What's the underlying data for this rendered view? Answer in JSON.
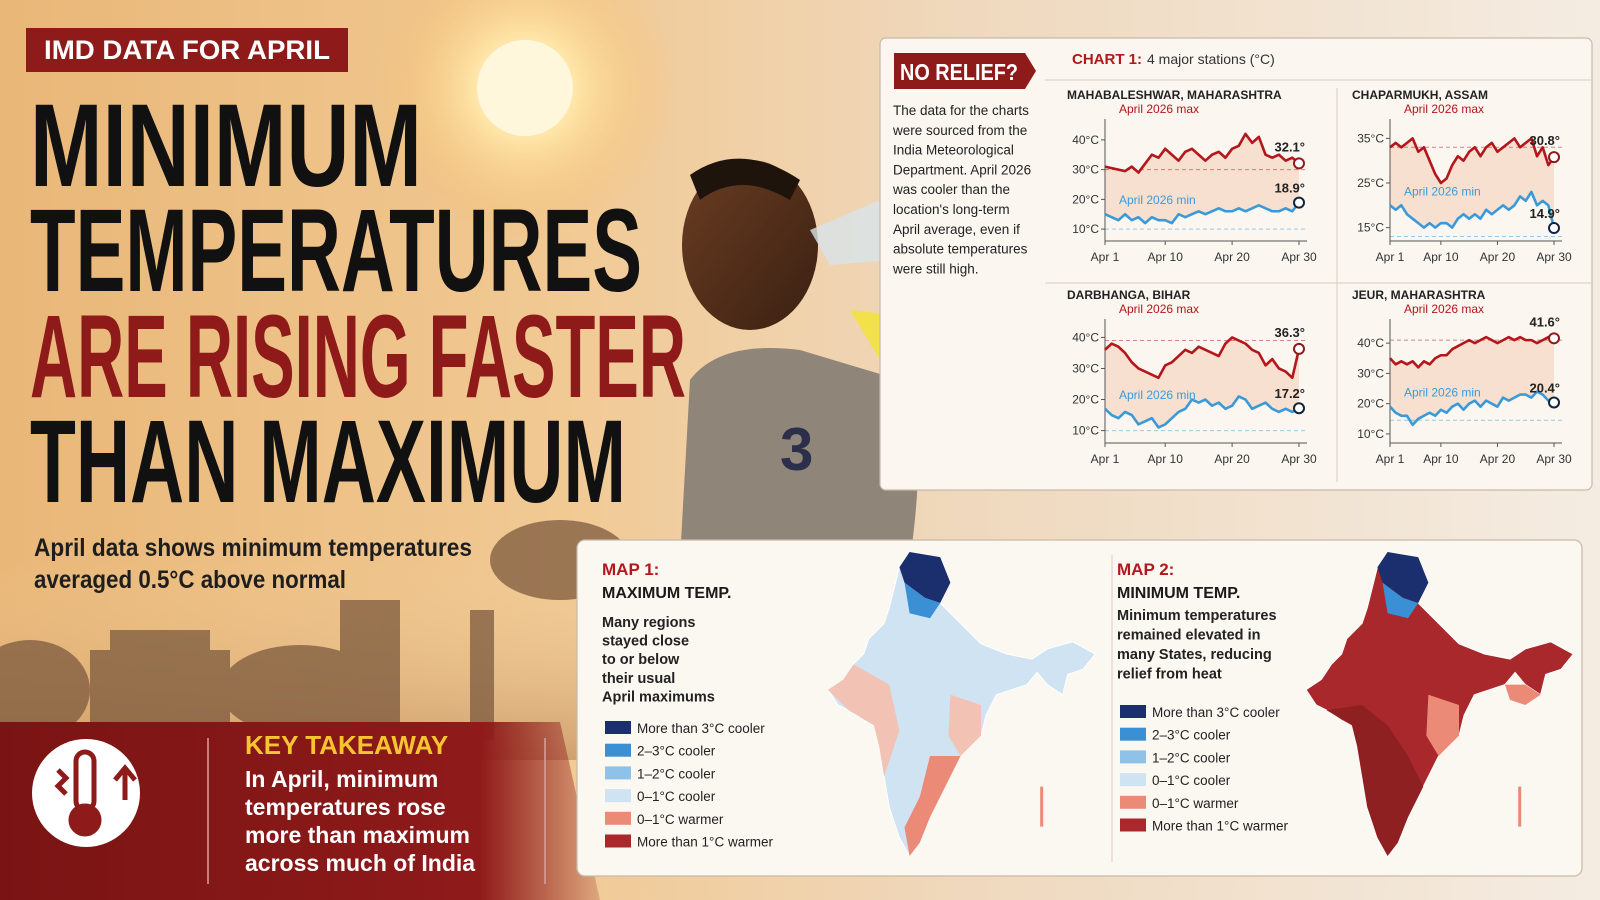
{
  "header": {
    "badge": "IMD DATA FOR APRIL",
    "title_lines": [
      "MINIMUM",
      "TEMPERATURES",
      "ARE RISING FASTER",
      "THAN MAXIMUM"
    ],
    "subtitle_lines": [
      "April data shows minimum temperatures",
      "averaged 0.5°C above normal"
    ]
  },
  "key_takeaway": {
    "heading": "KEY TAKEAWAY",
    "lines": [
      "In April, minimum",
      "temperatures rose",
      "more than maximum",
      "across much of India"
    ]
  },
  "sidebar": {
    "tag": "NO RELIEF?",
    "lines": [
      "The data for the charts",
      "were sourced from the",
      "India Meteorological",
      "Department. April 2026",
      "was cooler than the",
      "location's long-term",
      "April average, even if",
      "absolute temperatures",
      "were still high."
    ]
  },
  "chart_heading": {
    "label": "CHART 1:",
    "text": "4 major stations (°C)"
  },
  "chart_data": [
    {
      "type": "line",
      "title": "MAHABALESHWAR, MAHARASHTRA",
      "x": [
        1,
        2,
        3,
        4,
        5,
        6,
        7,
        8,
        9,
        10,
        11,
        12,
        13,
        14,
        15,
        16,
        17,
        18,
        19,
        20,
        21,
        22,
        23,
        24,
        25,
        26,
        27,
        28,
        29,
        30
      ],
      "xlim": [
        1,
        30
      ],
      "xticks": [
        {
          "value": 1,
          "label": "Apr 1"
        },
        {
          "value": 10,
          "label": "Apr 10"
        },
        {
          "value": 20,
          "label": "Apr 20"
        },
        {
          "value": 30,
          "label": "Apr 30"
        }
      ],
      "ylim": [
        6,
        45
      ],
      "yticks": [
        {
          "value": 10,
          "label": "10°C"
        },
        {
          "value": 20,
          "label": "20°C"
        },
        {
          "value": 30,
          "label": "30°C"
        },
        {
          "value": 40,
          "label": "40°C"
        }
      ],
      "reference_lines": [
        30,
        10
      ],
      "series": [
        {
          "name": "April 2026 max",
          "color": "#b3161b",
          "values": [
            31,
            30.5,
            30,
            29.5,
            31,
            29,
            32,
            35,
            34,
            37,
            35,
            33,
            36,
            37,
            35,
            33,
            35,
            36,
            34,
            37,
            38,
            42,
            39,
            41,
            35,
            34,
            35,
            33,
            34,
            32.1
          ],
          "value_labels": [
            null,
            null,
            null,
            null,
            null,
            null,
            null,
            null,
            null,
            null,
            null,
            null,
            null,
            null,
            null,
            null,
            null,
            null,
            null,
            null,
            null,
            null,
            null,
            null,
            null,
            null,
            null,
            null,
            null,
            "32.1°"
          ]
        },
        {
          "name": "April 2026 min",
          "color": "#3a9ad9",
          "values": [
            15,
            14,
            13,
            15,
            13,
            14,
            12,
            14,
            13,
            13,
            12,
            15,
            14,
            15,
            16,
            15,
            16,
            17,
            16,
            16,
            17,
            16,
            17,
            18,
            17,
            16,
            16,
            17,
            16,
            18.9
          ],
          "value_labels": [
            null,
            null,
            null,
            null,
            null,
            null,
            null,
            null,
            null,
            null,
            null,
            null,
            null,
            null,
            null,
            null,
            null,
            null,
            null,
            null,
            null,
            null,
            null,
            null,
            null,
            null,
            null,
            null,
            null,
            "18.9°"
          ]
        }
      ]
    },
    {
      "type": "line",
      "title": "CHAPARMUKH, ASSAM",
      "x": [
        1,
        2,
        3,
        4,
        5,
        6,
        7,
        8,
        9,
        10,
        11,
        12,
        13,
        14,
        15,
        16,
        17,
        18,
        19,
        20,
        21,
        22,
        23,
        24,
        25,
        26,
        27,
        28,
        29,
        30
      ],
      "xlim": [
        1,
        30
      ],
      "xticks": [
        {
          "value": 1,
          "label": "Apr 1"
        },
        {
          "value": 10,
          "label": "Apr 10"
        },
        {
          "value": 20,
          "label": "Apr 20"
        },
        {
          "value": 30,
          "label": "Apr 30"
        }
      ],
      "ylim": [
        12,
        38
      ],
      "yticks": [
        {
          "value": 15,
          "label": "15°C"
        },
        {
          "value": 25,
          "label": "25°C"
        },
        {
          "value": 35,
          "label": "35°C"
        }
      ],
      "reference_lines": [
        33,
        13
      ],
      "series": [
        {
          "name": "April 2026 max",
          "color": "#b3161b",
          "values": [
            33,
            34,
            33,
            34,
            35,
            32,
            33,
            30,
            27,
            25,
            26,
            29,
            31,
            30,
            32,
            33,
            31,
            33,
            34,
            32,
            33,
            34,
            35,
            33,
            34,
            35,
            31,
            33,
            29,
            30.8
          ],
          "value_labels": [
            null,
            null,
            null,
            null,
            null,
            null,
            null,
            null,
            null,
            null,
            null,
            null,
            null,
            null,
            null,
            null,
            null,
            null,
            null,
            null,
            null,
            null,
            null,
            null,
            null,
            null,
            null,
            null,
            null,
            "30.8°"
          ]
        },
        {
          "name": "April 2026 min",
          "color": "#3a9ad9",
          "values": [
            20,
            19,
            20,
            18,
            17,
            16,
            15,
            16,
            15,
            16,
            16,
            15,
            17,
            18,
            17,
            18,
            17,
            19,
            18,
            19,
            20,
            19,
            20,
            22,
            21,
            23,
            20,
            21,
            20,
            14.9
          ],
          "value_labels": [
            null,
            null,
            null,
            null,
            null,
            null,
            null,
            null,
            null,
            null,
            null,
            null,
            null,
            null,
            null,
            null,
            null,
            null,
            null,
            null,
            null,
            null,
            null,
            null,
            null,
            null,
            null,
            null,
            null,
            "14.9°"
          ]
        }
      ]
    },
    {
      "type": "line",
      "title": "DARBHANGA, BIHAR",
      "x": [
        1,
        2,
        3,
        4,
        5,
        6,
        7,
        8,
        9,
        10,
        11,
        12,
        13,
        14,
        15,
        16,
        17,
        18,
        19,
        20,
        21,
        22,
        23,
        24,
        25,
        26,
        27,
        28,
        29,
        30
      ],
      "xlim": [
        1,
        30
      ],
      "xticks": [
        {
          "value": 1,
          "label": "Apr 1"
        },
        {
          "value": 10,
          "label": "Apr 10"
        },
        {
          "value": 20,
          "label": "Apr 20"
        },
        {
          "value": 30,
          "label": "Apr 30"
        }
      ],
      "ylim": [
        6,
        44
      ],
      "yticks": [
        {
          "value": 10,
          "label": "10°C"
        },
        {
          "value": 20,
          "label": "20°C"
        },
        {
          "value": 30,
          "label": "30°C"
        },
        {
          "value": 40,
          "label": "40°C"
        }
      ],
      "reference_lines": [
        39,
        10
      ],
      "series": [
        {
          "name": "April 2026 max",
          "color": "#b3161b",
          "values": [
            36,
            38,
            37,
            35,
            32,
            30,
            29,
            28,
            27,
            31,
            32,
            34,
            36,
            35,
            37,
            36,
            35,
            34,
            38,
            40,
            39,
            38,
            36,
            35,
            31,
            33,
            30,
            29,
            27,
            36.3
          ],
          "value_labels": [
            null,
            null,
            null,
            null,
            null,
            null,
            null,
            null,
            null,
            null,
            null,
            null,
            null,
            null,
            null,
            null,
            null,
            null,
            null,
            null,
            null,
            null,
            null,
            null,
            null,
            null,
            null,
            null,
            null,
            "36.3°"
          ]
        },
        {
          "name": "April 2026 min",
          "color": "#3a9ad9",
          "values": [
            17,
            15,
            14,
            16,
            15,
            12,
            13,
            14,
            11,
            12,
            14,
            16,
            17,
            20,
            19,
            20,
            18,
            19,
            17,
            18,
            21,
            20,
            17,
            18,
            19,
            17,
            16,
            17,
            16,
            17.2
          ],
          "value_labels": [
            null,
            null,
            null,
            null,
            null,
            null,
            null,
            null,
            null,
            null,
            null,
            null,
            null,
            null,
            null,
            null,
            null,
            null,
            null,
            null,
            null,
            null,
            null,
            null,
            null,
            null,
            null,
            null,
            null,
            "17.2°"
          ]
        }
      ]
    },
    {
      "type": "line",
      "title": "JEUR, MAHARASHTRA",
      "x": [
        1,
        2,
        3,
        4,
        5,
        6,
        7,
        8,
        9,
        10,
        11,
        12,
        13,
        14,
        15,
        16,
        17,
        18,
        19,
        20,
        21,
        22,
        23,
        24,
        25,
        26,
        27,
        28,
        29,
        30
      ],
      "xlim": [
        1,
        30
      ],
      "xticks": [
        {
          "value": 1,
          "label": "Apr 1"
        },
        {
          "value": 10,
          "label": "Apr 10"
        },
        {
          "value": 20,
          "label": "Apr 20"
        },
        {
          "value": 30,
          "label": "Apr 30"
        }
      ],
      "ylim": [
        7,
        46
      ],
      "yticks": [
        {
          "value": 10,
          "label": "10°C"
        },
        {
          "value": 20,
          "label": "20°C"
        },
        {
          "value": 30,
          "label": "30°C"
        },
        {
          "value": 40,
          "label": "40°C"
        }
      ],
      "reference_lines": [
        41,
        14.5
      ],
      "series": [
        {
          "name": "April 2026 max",
          "color": "#b3161b",
          "values": [
            35,
            33,
            34,
            33,
            34,
            32,
            34,
            33,
            35,
            36,
            36,
            38,
            39,
            40,
            41,
            40,
            41,
            42,
            41,
            40,
            41,
            42,
            41,
            42,
            41,
            41,
            40,
            41,
            42,
            41.6
          ],
          "value_labels": [
            null,
            null,
            null,
            null,
            null,
            null,
            null,
            null,
            null,
            null,
            null,
            null,
            null,
            null,
            null,
            null,
            null,
            null,
            null,
            null,
            null,
            null,
            null,
            null,
            null,
            null,
            null,
            null,
            null,
            "41.6°"
          ]
        },
        {
          "name": "April 2026 min",
          "color": "#3a9ad9",
          "values": [
            19,
            17,
            16,
            16,
            13,
            15,
            16,
            17,
            16,
            18,
            17,
            19,
            20,
            18,
            20,
            21,
            19,
            21,
            20,
            19,
            22,
            21,
            22,
            23,
            23,
            22,
            24,
            23,
            21,
            20.4
          ],
          "value_labels": [
            null,
            null,
            null,
            null,
            null,
            null,
            null,
            null,
            null,
            null,
            null,
            null,
            null,
            null,
            null,
            null,
            null,
            null,
            null,
            null,
            null,
            null,
            null,
            null,
            null,
            null,
            null,
            null,
            null,
            "20.4°"
          ]
        }
      ]
    }
  ],
  "maps": [
    {
      "label": "MAP 1:",
      "title": "MAXIMUM TEMP.",
      "description_lines": [
        "Many regions",
        "stayed close",
        "to or below",
        "their usual",
        "April maximums"
      ],
      "legend": [
        {
          "label": "More than 3°C cooler",
          "color": "#1b2f6e"
        },
        {
          "label": "2–3°C cooler",
          "color": "#3b8fd4"
        },
        {
          "label": "1–2°C cooler",
          "color": "#8fc2e8"
        },
        {
          "label": "0–1°C cooler",
          "color": "#cfe3f3"
        },
        {
          "label": "0–1°C warmer",
          "color": "#ec8a78"
        },
        {
          "label": "More than 1°C warmer",
          "color": "#a8282c"
        }
      ]
    },
    {
      "label": "MAP 2:",
      "title": "MINIMUM TEMP.",
      "description_lines": [
        "Minimum temperatures",
        "remained elevated in",
        "many States, reducing",
        "relief from heat"
      ],
      "legend": [
        {
          "label": "More than 3°C cooler",
          "color": "#1b2f6e"
        },
        {
          "label": "2–3°C cooler",
          "color": "#3b8fd4"
        },
        {
          "label": "1–2°C cooler",
          "color": "#8fc2e8"
        },
        {
          "label": "0–1°C cooler",
          "color": "#cfe3f3"
        },
        {
          "label": "0–1°C warmer",
          "color": "#ec8a78"
        },
        {
          "label": "More than 1°C warmer",
          "color": "#a8282c"
        }
      ]
    }
  ]
}
